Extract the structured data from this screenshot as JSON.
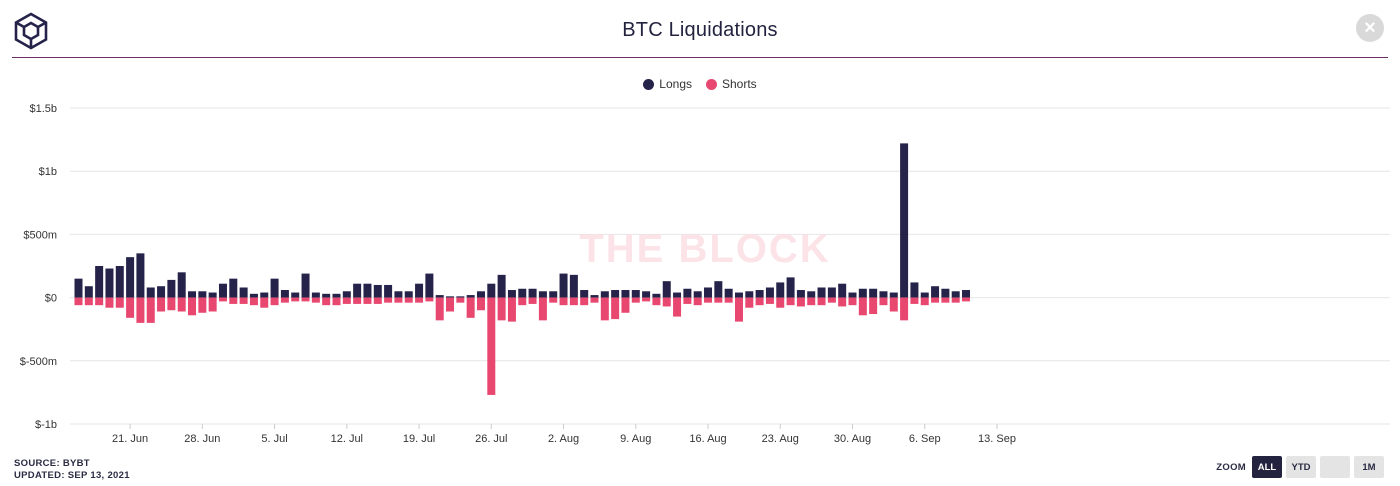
{
  "header": {
    "title": "BTC Liquidations",
    "close_label": "×"
  },
  "watermark": "THE BLOCK",
  "footer": {
    "source": "SOURCE: BYBT",
    "updated": "UPDATED: SEP 13, 2021"
  },
  "zoom": {
    "label": "ZOOM",
    "buttons": [
      "ALL",
      "YTD",
      "",
      "1M"
    ],
    "active": "ALL"
  },
  "colors": {
    "longs": "#25234a",
    "shorts": "#e8476f",
    "divider": "#6b2f66"
  },
  "icons": {
    "logo": "the-block-cube-logo-icon",
    "close": "close-icon"
  },
  "chart_data": {
    "type": "bar",
    "title": "BTC Liquidations",
    "legend": {
      "position": "top-center",
      "entries": [
        "Longs",
        "Shorts"
      ]
    },
    "grid": true,
    "ylim": [
      -1000,
      1500
    ],
    "y_unit": "millions USD",
    "y_ticks": [
      1500,
      1000,
      500,
      0,
      -500,
      -1000
    ],
    "y_tick_labels": [
      "$1.5b",
      "$1b",
      "$500m",
      "$0",
      "$-500m",
      "$-1b"
    ],
    "x_tick_labels": [
      "21. Jun",
      "28. Jun",
      "5. Jul",
      "12. Jul",
      "19. Jul",
      "26. Jul",
      "2. Aug",
      "9. Aug",
      "16. Aug",
      "23. Aug",
      "30. Aug",
      "6. Sep",
      "13. Sep"
    ],
    "start_date": "2021-06-16",
    "end_date": "2021-09-13",
    "series": [
      {
        "name": "Longs",
        "values": [
          150,
          90,
          250,
          230,
          250,
          320,
          350,
          80,
          90,
          140,
          200,
          50,
          50,
          40,
          110,
          150,
          80,
          30,
          40,
          150,
          60,
          40,
          190,
          40,
          30,
          30,
          50,
          110,
          110,
          100,
          100,
          50,
          50,
          110,
          190,
          20,
          10,
          10,
          20,
          50,
          110,
          180,
          60,
          70,
          70,
          50,
          50,
          190,
          180,
          60,
          20,
          50,
          60,
          60,
          60,
          50,
          30,
          130,
          40,
          70,
          50,
          80,
          130,
          70,
          40,
          50,
          60,
          80,
          120,
          160,
          60,
          50,
          80,
          80,
          110,
          40,
          70,
          70,
          50,
          40,
          1220,
          120,
          40,
          90,
          70,
          50,
          60
        ]
      },
      {
        "name": "Shorts",
        "values": [
          -60,
          -60,
          -60,
          -80,
          -80,
          -160,
          -200,
          -200,
          -110,
          -100,
          -110,
          -140,
          -120,
          -110,
          -30,
          -50,
          -50,
          -60,
          -80,
          -60,
          -40,
          -30,
          -30,
          -40,
          -60,
          -60,
          -50,
          -50,
          -50,
          -50,
          -40,
          -40,
          -40,
          -40,
          -30,
          -180,
          -110,
          -40,
          -160,
          -100,
          -770,
          -180,
          -190,
          -60,
          -50,
          -180,
          -40,
          -60,
          -60,
          -60,
          -40,
          -180,
          -170,
          -120,
          -40,
          -30,
          -60,
          -70,
          -150,
          -50,
          -60,
          -40,
          -40,
          -40,
          -190,
          -80,
          -60,
          -50,
          -80,
          -60,
          -70,
          -60,
          -60,
          -40,
          -70,
          -60,
          -140,
          -130,
          -60,
          -110,
          -180,
          -50,
          -60,
          -40,
          -40,
          -40,
          -30
        ]
      }
    ]
  }
}
